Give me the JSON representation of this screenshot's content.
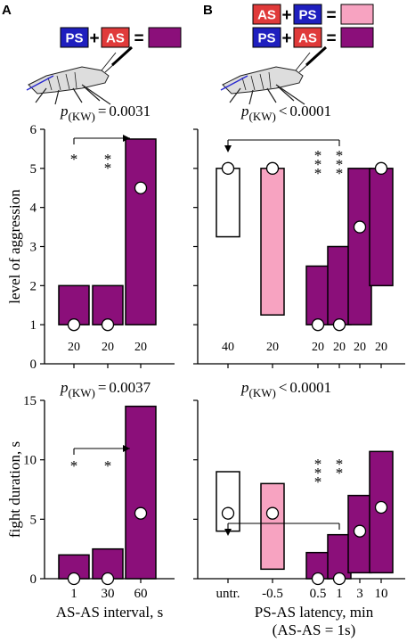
{
  "panels": {
    "A": {
      "label": "A",
      "stimulus": [
        "PS",
        "AS"
      ],
      "colors": {
        "PS": "#1f1fbf",
        "AS": "#e03a3a",
        "result": "#8b0f7a"
      }
    },
    "B": {
      "label": "B",
      "stimulus_rows": [
        {
          "items": [
            "AS",
            "PS"
          ],
          "result_color": "#f7a3c1"
        },
        {
          "items": [
            "PS",
            "AS"
          ],
          "result_color": "#8b0f7a"
        }
      ]
    }
  },
  "pvalues": {
    "A_top": {
      "p": "p",
      "sub": "(KW)",
      "rel": "=",
      "val": "0.0031"
    },
    "B_top": {
      "p": "p",
      "sub": "(KW)",
      "rel": "<",
      "val": "0.0001"
    },
    "A_bottom": {
      "p": "p",
      "sub": "(KW)",
      "rel": "=",
      "val": "0.0037"
    },
    "B_bottom": {
      "p": "p",
      "sub": "(KW)",
      "rel": "<",
      "val": "0.0001"
    }
  },
  "chart_data": [
    {
      "id": "A-aggression",
      "type": "bar",
      "ylabel": "level of aggression",
      "ylim": [
        0,
        6
      ],
      "yticks": [
        0,
        1,
        2,
        3,
        4,
        5,
        6
      ],
      "categories": [
        "1",
        "30",
        "60"
      ],
      "ranges": [
        [
          1,
          2
        ],
        [
          1,
          2
        ],
        [
          1,
          5.75
        ]
      ],
      "medians": [
        1,
        1,
        4.5
      ],
      "n": [
        "20",
        "20",
        "20"
      ],
      "colors": [
        "#8b0f7a",
        "#8b0f7a",
        "#8b0f7a"
      ],
      "significance": [
        {
          "category": "1",
          "stars": "*"
        },
        {
          "category": "30",
          "stars": "**"
        }
      ],
      "reference": "60"
    },
    {
      "id": "B-aggression",
      "type": "bar",
      "ylim": [
        0,
        6
      ],
      "yticks": [
        0,
        1,
        2,
        3,
        4,
        5,
        6
      ],
      "categories": [
        "untr.",
        "-0.5",
        "0.5",
        "1",
        "3",
        "10"
      ],
      "ranges": [
        [
          3.25,
          5
        ],
        [
          1.25,
          5
        ],
        [
          1,
          2.5
        ],
        [
          1,
          3
        ],
        [
          1,
          5
        ],
        [
          2,
          5
        ]
      ],
      "medians": [
        5,
        5,
        1,
        1,
        3.5,
        5
      ],
      "n": [
        "40",
        "20",
        "20",
        "20",
        "20",
        "20"
      ],
      "colors": [
        "#ffffff",
        "#f7a3c1",
        "#8b0f7a",
        "#8b0f7a",
        "#8b0f7a",
        "#8b0f7a"
      ],
      "significance": [
        {
          "category": "0.5",
          "stars": "***"
        },
        {
          "category": "1",
          "stars": "***"
        }
      ],
      "reference": "untr."
    },
    {
      "id": "A-duration",
      "type": "bar",
      "ylabel": "fight duration, s",
      "xlabel": "AS-AS interval, s",
      "ylim": [
        0,
        15
      ],
      "yticks": [
        0,
        5,
        10,
        15
      ],
      "categories": [
        "1",
        "30",
        "60"
      ],
      "ranges": [
        [
          0,
          2
        ],
        [
          0,
          2.5
        ],
        [
          0,
          14.5
        ]
      ],
      "medians": [
        0,
        0,
        5.5
      ],
      "colors": [
        "#8b0f7a",
        "#8b0f7a",
        "#8b0f7a"
      ],
      "significance": [
        {
          "category": "1",
          "stars": "*"
        },
        {
          "category": "30",
          "stars": "*"
        }
      ],
      "reference": "60"
    },
    {
      "id": "B-duration",
      "type": "bar",
      "xlabel": "PS-AS latency, min",
      "xlabel2": "(AS-AS = 1s)",
      "ylim": [
        0,
        15
      ],
      "yticks": [
        0,
        5,
        10,
        15
      ],
      "categories": [
        "untr.",
        "-0.5",
        "0.5",
        "1",
        "3",
        "10"
      ],
      "ranges": [
        [
          4,
          9
        ],
        [
          0.8,
          8
        ],
        [
          0,
          2.2
        ],
        [
          0,
          3.7
        ],
        [
          0.5,
          7
        ],
        [
          0.5,
          10.7
        ]
      ],
      "medians": [
        5.5,
        5.5,
        0,
        0,
        4,
        6
      ],
      "colors": [
        "#ffffff",
        "#f7a3c1",
        "#8b0f7a",
        "#8b0f7a",
        "#8b0f7a",
        "#8b0f7a"
      ],
      "significance": [
        {
          "category": "0.5",
          "stars": "***"
        },
        {
          "category": "1",
          "stars": "**"
        }
      ],
      "reference": "untr."
    }
  ]
}
